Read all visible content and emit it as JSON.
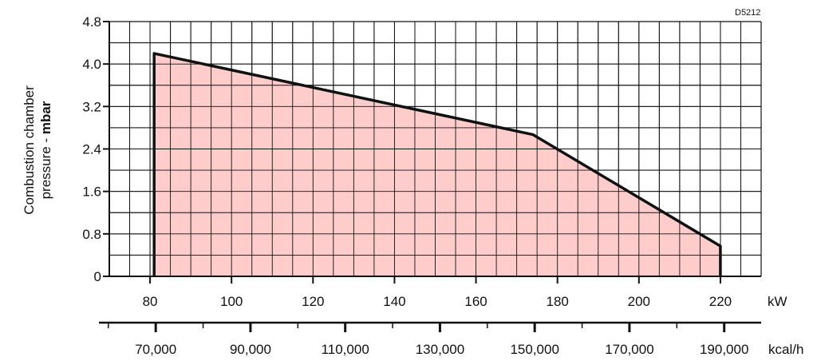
{
  "chart_code": "D5212",
  "chart_data": {
    "type": "area",
    "title": "",
    "ylabel_line1": "Combustion chamber",
    "ylabel_line2_prefix": "pressure - ",
    "ylabel_line2_bold": "mbar",
    "xlabel": "kW",
    "x2label": "kcal/h",
    "xlim": [
      70,
      230
    ],
    "ylim": [
      0,
      4.8
    ],
    "x_ticks": [
      80,
      100,
      120,
      140,
      160,
      180,
      200,
      220
    ],
    "y_ticks": [
      0,
      0.8,
      1.6,
      2.4,
      3.2,
      4.0,
      4.8
    ],
    "y_tick_labels": [
      "0",
      "0.8",
      "1.6",
      "2.4",
      "3.2",
      "4.0",
      "4.8"
    ],
    "x2_ticks": [
      {
        "value": 70000,
        "label": "70,000"
      },
      {
        "value": 90000,
        "label": "90,000"
      },
      {
        "value": 110000,
        "label": "110,000"
      },
      {
        "value": 130000,
        "label": "130,000"
      },
      {
        "value": 150000,
        "label": "150,000"
      },
      {
        "value": 170000,
        "label": "170,000"
      },
      {
        "value": 190000,
        "label": "190,000"
      }
    ],
    "x2_minor_ticks": [
      60000,
      80000,
      100000,
      120000,
      140000,
      160000,
      180000,
      200000
    ],
    "kcal_per_kw": 860,
    "grid": true,
    "series": [
      {
        "x": [
          81,
          81,
          174,
          220,
          220
        ],
        "y": [
          0,
          4.2,
          2.67,
          0.57,
          0
        ]
      }
    ],
    "fill_color": "#ffcccc",
    "line_color": "#111111",
    "grid_color": "#111111"
  }
}
